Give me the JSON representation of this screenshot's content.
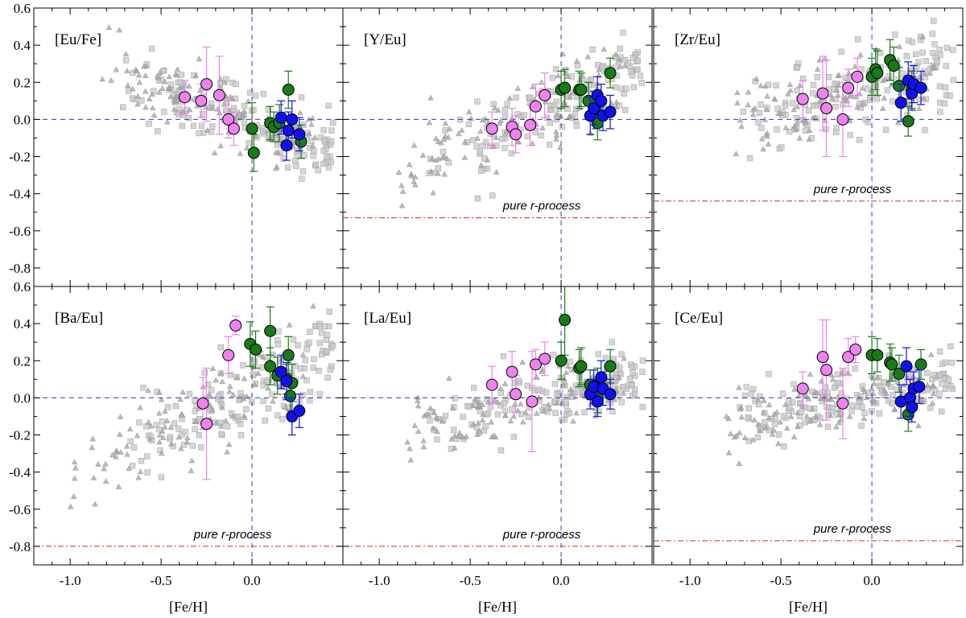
{
  "figure": {
    "xlabel": "[Fe/H]",
    "xlim": [
      -1.2,
      0.5
    ],
    "ylim": [
      -0.9,
      0.6
    ],
    "xticks": [
      -1.0,
      -0.5,
      0.0
    ],
    "xtick_labels": [
      "-1.0",
      "-0.5",
      "0.0"
    ],
    "yticks": [
      -0.8,
      -0.6,
      -0.4,
      -0.2,
      0.0,
      0.2,
      0.4,
      0.6
    ],
    "ytick_labels": [
      "-0.8",
      "-0.6",
      "-0.4",
      "-0.2",
      "0.0",
      "0.2",
      "0.4",
      "0.6"
    ],
    "pure_r_label": "pure r-process",
    "colors": {
      "pink": "#ee82ee",
      "green": "#1a7a1a",
      "blue": "#1111ee",
      "gray_square": "#c8c8c8",
      "gray_triangle": "#a9a9a9",
      "ref_line": "#3a3aa8",
      "pure_r_line": "#dd2222"
    }
  },
  "chart_data": [
    {
      "type": "scatter",
      "panel_label": "[Eu/Fe]",
      "pure_r": null,
      "series": [
        {
          "name": "",
          "color": "pink",
          "points": [
            [
              -0.37,
              0.12,
              0.09
            ],
            [
              -0.28,
              0.1,
              0.09
            ],
            [
              -0.25,
              0.19,
              0.2
            ],
            [
              -0.18,
              0.13,
              0.21
            ],
            [
              -0.13,
              0.0,
              0.1
            ],
            [
              -0.1,
              -0.05,
              0.09
            ]
          ]
        },
        {
          "name": "",
          "color": "green",
          "points": [
            [
              0.0,
              -0.05,
              0.14
            ],
            [
              0.01,
              -0.18,
              0.1
            ],
            [
              0.1,
              -0.02,
              0.09
            ],
            [
              0.12,
              -0.04,
              0.08
            ],
            [
              0.15,
              -0.02,
              0.1
            ],
            [
              0.2,
              0.16,
              0.1
            ],
            [
              0.27,
              -0.12,
              0.09
            ]
          ]
        },
        {
          "name": "",
          "color": "blue",
          "points": [
            [
              0.16,
              0.01,
              0.09
            ],
            [
              0.19,
              -0.14,
              0.08
            ],
            [
              0.2,
              -0.06,
              0.1
            ],
            [
              0.22,
              0.0,
              0.1
            ],
            [
              0.26,
              -0.08,
              0.09
            ]
          ]
        }
      ]
    },
    {
      "type": "scatter",
      "panel_label": "[Y/Eu]",
      "pure_r": -0.53,
      "series": [
        {
          "name": "",
          "color": "pink",
          "points": [
            [
              -0.38,
              -0.05,
              0.09
            ],
            [
              -0.27,
              -0.04,
              0.1
            ],
            [
              -0.25,
              -0.08,
              0.1
            ],
            [
              -0.17,
              -0.03,
              0.11
            ],
            [
              -0.14,
              0.07,
              0.12
            ],
            [
              -0.09,
              0.13,
              0.12
            ]
          ]
        },
        {
          "name": "",
          "color": "green",
          "points": [
            [
              0.0,
              0.16,
              0.1
            ],
            [
              0.02,
              0.17,
              0.1
            ],
            [
              0.1,
              0.16,
              0.1
            ],
            [
              0.11,
              0.16,
              0.09
            ],
            [
              0.15,
              0.1,
              0.1
            ],
            [
              0.19,
              0.05,
              0.1
            ],
            [
              0.2,
              -0.02,
              0.09
            ],
            [
              0.27,
              0.25,
              0.08
            ]
          ]
        },
        {
          "name": "",
          "color": "blue",
          "points": [
            [
              0.16,
              0.02,
              0.1
            ],
            [
              0.18,
              0.06,
              0.09
            ],
            [
              0.2,
              0.13,
              0.1
            ],
            [
              0.22,
              0.1,
              0.09
            ],
            [
              0.23,
              0.02,
              0.08
            ],
            [
              0.27,
              0.04,
              0.09
            ]
          ]
        }
      ]
    },
    {
      "type": "scatter",
      "panel_label": "[Zr/Eu]",
      "pure_r": -0.44,
      "series": [
        {
          "name": "",
          "color": "pink",
          "points": [
            [
              -0.38,
              0.11,
              0.1
            ],
            [
              -0.27,
              0.14,
              0.2
            ],
            [
              -0.25,
              0.06,
              0.26
            ],
            [
              -0.16,
              0.0,
              0.2
            ],
            [
              -0.13,
              0.17,
              0.1
            ],
            [
              -0.08,
              0.23,
              0.1
            ]
          ]
        },
        {
          "name": "",
          "color": "green",
          "points": [
            [
              0.0,
              0.23,
              0.1
            ],
            [
              0.02,
              0.27,
              0.11
            ],
            [
              0.03,
              0.25,
              0.12
            ],
            [
              0.1,
              0.32,
              0.11
            ],
            [
              0.12,
              0.29,
              0.1
            ],
            [
              0.15,
              0.18,
              0.1
            ],
            [
              0.2,
              -0.01,
              0.08
            ],
            [
              0.22,
              0.16,
              0.1
            ]
          ]
        },
        {
          "name": "",
          "color": "blue",
          "points": [
            [
              0.16,
              0.09,
              0.1
            ],
            [
              0.2,
              0.21,
              0.1
            ],
            [
              0.22,
              0.14,
              0.09
            ],
            [
              0.23,
              0.19,
              0.1
            ],
            [
              0.27,
              0.17,
              0.09
            ]
          ]
        }
      ]
    },
    {
      "type": "scatter",
      "panel_label": "[Ba/Eu]",
      "pure_r": -0.8,
      "series": [
        {
          "name": "",
          "color": "pink",
          "points": [
            [
              -0.27,
              -0.03,
              0.14
            ],
            [
              -0.25,
              -0.14,
              0.3
            ],
            [
              -0.13,
              0.23,
              0.1
            ],
            [
              -0.09,
              0.39,
              0.05
            ]
          ]
        },
        {
          "name": "",
          "color": "green",
          "points": [
            [
              -0.01,
              0.29,
              0.12
            ],
            [
              0.02,
              0.26,
              0.1
            ],
            [
              0.1,
              0.36,
              0.13
            ],
            [
              0.1,
              0.17,
              0.1
            ],
            [
              0.14,
              0.12,
              0.1
            ],
            [
              0.19,
              0.1,
              0.08
            ],
            [
              0.2,
              0.23,
              0.1
            ],
            [
              0.21,
              0.01,
              0.08
            ],
            [
              0.22,
              0.08,
              0.1
            ]
          ]
        },
        {
          "name": "",
          "color": "blue",
          "points": [
            [
              0.16,
              0.14,
              0.09
            ],
            [
              0.19,
              0.09,
              0.1
            ],
            [
              0.22,
              -0.1,
              0.1
            ],
            [
              0.26,
              -0.07,
              0.09
            ]
          ]
        }
      ]
    },
    {
      "type": "scatter",
      "panel_label": "[La/Eu]",
      "pure_r": -0.8,
      "series": [
        {
          "name": "",
          "color": "pink",
          "points": [
            [
              -0.38,
              0.07,
              0.1
            ],
            [
              -0.27,
              0.14,
              0.11
            ],
            [
              -0.25,
              0.02,
              0.1
            ],
            [
              -0.16,
              -0.02,
              0.27
            ],
            [
              -0.14,
              0.18,
              0.08
            ],
            [
              -0.09,
              0.21,
              0.09
            ]
          ]
        },
        {
          "name": "",
          "color": "green",
          "points": [
            [
              0.0,
              0.2,
              0.1
            ],
            [
              0.02,
              0.42,
              0.19
            ],
            [
              0.1,
              0.16,
              0.1
            ],
            [
              0.11,
              0.17,
              0.1
            ],
            [
              0.16,
              0.07,
              0.08
            ],
            [
              0.2,
              0.07,
              0.09
            ],
            [
              0.2,
              0.0,
              0.08
            ],
            [
              0.27,
              0.17,
              0.09
            ]
          ]
        },
        {
          "name": "",
          "color": "blue",
          "points": [
            [
              0.16,
              0.02,
              0.08
            ],
            [
              0.18,
              0.06,
              0.09
            ],
            [
              0.2,
              -0.02,
              0.08
            ],
            [
              0.22,
              0.11,
              0.09
            ],
            [
              0.23,
              0.05,
              0.09
            ],
            [
              0.27,
              0.02,
              0.08
            ]
          ]
        }
      ]
    },
    {
      "type": "scatter",
      "panel_label": "[Ce/Eu]",
      "pure_r": -0.77,
      "series": [
        {
          "name": "",
          "color": "pink",
          "points": [
            [
              -0.38,
              0.05,
              0.09
            ],
            [
              -0.27,
              0.22,
              0.2
            ],
            [
              -0.25,
              0.15,
              0.27
            ],
            [
              -0.16,
              -0.03,
              0.19
            ],
            [
              -0.13,
              0.22,
              0.1
            ],
            [
              -0.09,
              0.26,
              0.07
            ]
          ]
        },
        {
          "name": "",
          "color": "green",
          "points": [
            [
              0.0,
              0.23,
              0.1
            ],
            [
              0.03,
              0.23,
              0.09
            ],
            [
              0.1,
              0.19,
              0.1
            ],
            [
              0.11,
              0.18,
              0.09
            ],
            [
              0.15,
              0.13,
              0.1
            ],
            [
              0.2,
              -0.09,
              0.09
            ],
            [
              0.27,
              0.18,
              0.08
            ]
          ]
        },
        {
          "name": "",
          "color": "blue",
          "points": [
            [
              0.16,
              -0.02,
              0.09
            ],
            [
              0.19,
              0.17,
              0.1
            ],
            [
              0.21,
              0.0,
              0.1
            ],
            [
              0.22,
              -0.05,
              0.08
            ],
            [
              0.23,
              0.05,
              0.09
            ],
            [
              0.26,
              0.06,
              0.09
            ]
          ]
        }
      ]
    }
  ]
}
